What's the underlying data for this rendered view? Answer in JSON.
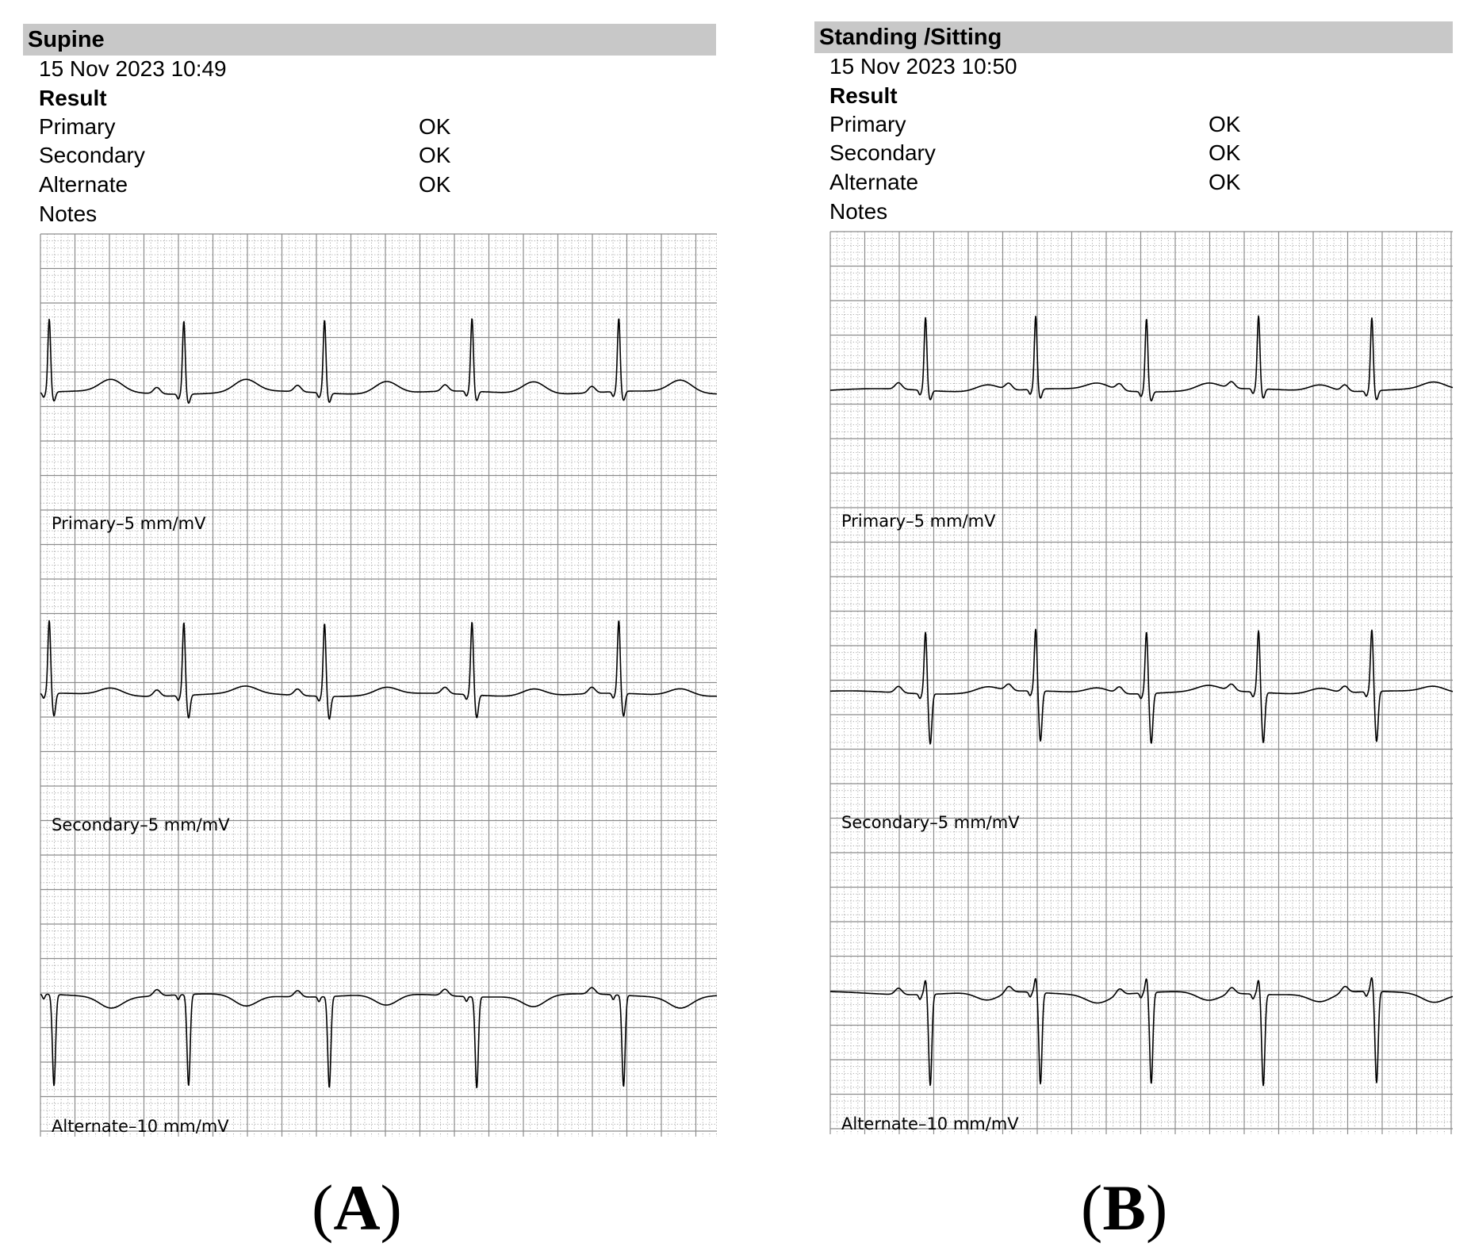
{
  "panels": [
    {
      "id": "a",
      "title": "Supine",
      "timestamp": "15 Nov 2023 10:49",
      "result_heading": "Result",
      "rows": [
        {
          "label": "Primary",
          "value": "OK"
        },
        {
          "label": "Secondary",
          "value": "OK"
        },
        {
          "label": "Alternate",
          "value": "OK"
        }
      ],
      "notes_label": "Notes",
      "caption_letter": "A",
      "leads": [
        {
          "name": "Primary",
          "label": "Primary–5 mm/mV"
        },
        {
          "name": "Secondary",
          "label": "Secondary–5 mm/mV"
        },
        {
          "name": "Alternate",
          "label": "Alternate–10 mm/mV"
        }
      ]
    },
    {
      "id": "b",
      "title": "Standing /Sitting",
      "timestamp": "15 Nov 2023 10:50",
      "result_heading": "Result",
      "rows": [
        {
          "label": "Primary",
          "value": "OK"
        },
        {
          "label": "Secondary",
          "value": "OK"
        },
        {
          "label": "Alternate",
          "value": "OK"
        }
      ],
      "notes_label": "Notes",
      "caption_letter": "B",
      "leads": [
        {
          "name": "Primary",
          "label": "Primary–5 mm/mV"
        },
        {
          "name": "Secondary",
          "label": "Secondary–5 mm/mV"
        },
        {
          "name": "Alternate",
          "label": "Alternate–10 mm/mV"
        }
      ]
    }
  ],
  "chart_data": [
    {
      "type": "line",
      "panel": "A",
      "title": "Supine",
      "grid": true,
      "series": [
        {
          "name": "Primary–5 mm/mV",
          "beat_positions": [
            0.013,
            0.212,
            0.42,
            0.638,
            0.855
          ],
          "r_peak": 1.0,
          "q_dip": 0.0,
          "s_dip": 0.1,
          "t_wave": 0.22
        },
        {
          "name": "Secondary–5 mm/mV",
          "beat_positions": [
            0.013,
            0.212,
            0.42,
            0.638,
            0.855
          ],
          "r_peak": 1.0,
          "q_dip": 0.0,
          "s_dip": 0.25,
          "t_wave": 0.13
        },
        {
          "name": "Alternate–10 mm/mV",
          "beat_positions": [
            0.013,
            0.212,
            0.42,
            0.638,
            0.855
          ],
          "r_peak": 0.0,
          "q_dip": 0.0,
          "s_dip": 1.0,
          "t_wave": -0.2
        }
      ],
      "colors": {
        "trace": "#000000",
        "minor_grid": "#9a9a9a",
        "major_grid": "#8c8c8c"
      }
    },
    {
      "type": "line",
      "panel": "B",
      "title": "Standing /Sitting",
      "grid": true,
      "series": [
        {
          "name": "Primary–5 mm/mV",
          "beat_positions": [
            0.153,
            0.33,
            0.508,
            0.688,
            0.87
          ],
          "r_peak": 1.0,
          "q_dip": 0.0,
          "s_dip": 0.1,
          "t_wave": 0.12
        },
        {
          "name": "Secondary–5 mm/mV",
          "beat_positions": [
            0.153,
            0.33,
            0.508,
            0.688,
            0.87
          ],
          "r_peak": 0.85,
          "q_dip": 0.0,
          "s_dip": 0.55,
          "t_wave": 0.1
        },
        {
          "name": "Alternate–10 mm/mV",
          "beat_positions": [
            0.153,
            0.33,
            0.508,
            0.688,
            0.87
          ],
          "r_peak": 0.2,
          "q_dip": 0.0,
          "s_dip": 1.0,
          "t_wave": -0.15
        }
      ],
      "colors": {
        "trace": "#000000",
        "minor_grid": "#9a9a9a",
        "major_grid": "#8c8c8c"
      }
    }
  ]
}
